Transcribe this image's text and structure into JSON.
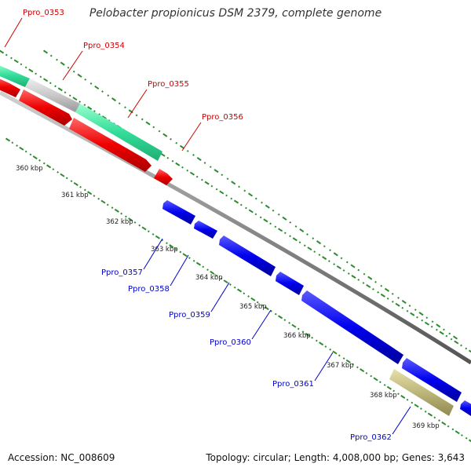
{
  "title": "Pelobacter propionicus DSM 2379, complete genome",
  "footer": {
    "accession": "Accession: NC_008609",
    "summary": "Topology: circular; Length: 4,008,000 bp; Genes: 3,643"
  },
  "colors": {
    "backbone": "#8a8a8a",
    "tick": "#2e8b2e",
    "ruler_text": "#222222",
    "forward_label": "#cc0000",
    "reverse_label": "#0000cc",
    "cds_red": "#ee0000",
    "cds_green": "#33dd99",
    "cds_gray": "#c8c8c8",
    "cds_blue": "#0000ee",
    "cds_olive": "#bdb67a"
  },
  "ruler": [
    "360 kbp",
    "361 kbp",
    "362 kbp",
    "363 kbp",
    "364 kbp",
    "365 kbp",
    "366 kbp",
    "367 kbp",
    "368 kbp",
    "369 kbp"
  ],
  "features": [
    {
      "label": "Ppro_0353",
      "strand": "forward"
    },
    {
      "label": "Ppro_0354",
      "strand": "forward"
    },
    {
      "label": "Ppro_0355",
      "strand": "forward"
    },
    {
      "label": "Ppro_0356",
      "strand": "forward"
    },
    {
      "label": "Ppro_0357",
      "strand": "reverse"
    },
    {
      "label": "Ppro_0358",
      "strand": "reverse"
    },
    {
      "label": "Ppro_0359",
      "strand": "reverse"
    },
    {
      "label": "Ppro_0360",
      "strand": "reverse"
    },
    {
      "label": "Ppro_0361",
      "strand": "reverse"
    },
    {
      "label": "Ppro_0362",
      "strand": "reverse"
    }
  ]
}
